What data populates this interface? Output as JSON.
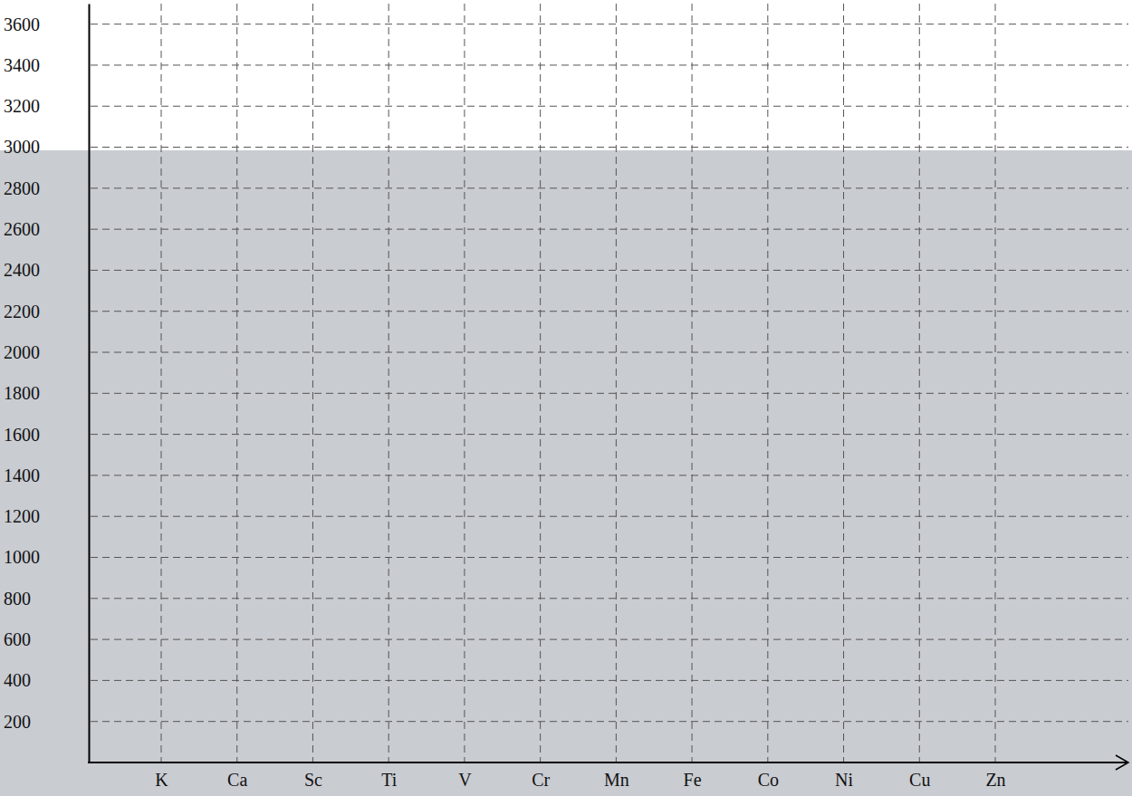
{
  "chart_data": {
    "type": "line",
    "categories": [
      "K",
      "Ca",
      "Sc",
      "Ti",
      "V",
      "Cr",
      "Mn",
      "Fe",
      "Co",
      "Ni",
      "Cu",
      "Zn"
    ],
    "values": [
      null,
      null,
      null,
      null,
      null,
      null,
      null,
      null,
      null,
      null,
      null,
      null
    ],
    "ylim": [
      0,
      3700
    ],
    "yticks": [
      200,
      400,
      600,
      800,
      1000,
      1200,
      1400,
      1600,
      1800,
      2000,
      2200,
      2400,
      2600,
      2800,
      3000,
      3200,
      3400,
      3600
    ],
    "grid": true
  }
}
